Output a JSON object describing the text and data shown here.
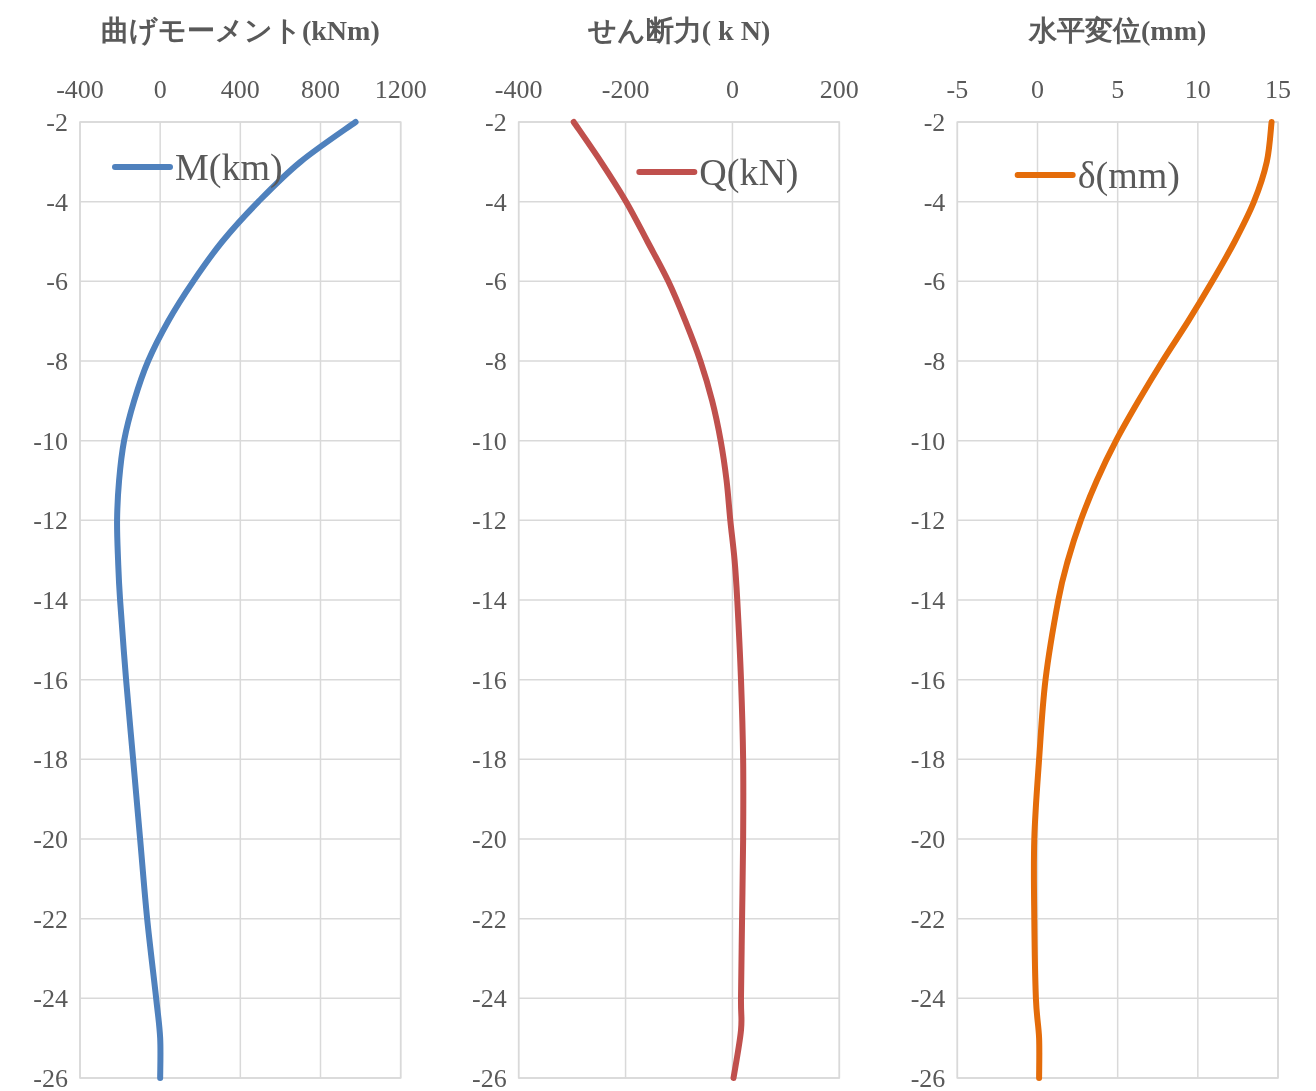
{
  "chart_data": [
    {
      "type": "line",
      "title": "曲げモーメント(kNm)",
      "xlim": [
        -400,
        1200
      ],
      "xticks": [
        -400,
        0,
        400,
        800,
        1200
      ],
      "ylim": [
        -26,
        -2
      ],
      "yticks": [
        -2,
        -4,
        -6,
        -8,
        -10,
        -12,
        -14,
        -16,
        -18,
        -20,
        -22,
        -24,
        -26
      ],
      "grid": true,
      "legend": "top left",
      "series": [
        {
          "name": "M(km)",
          "color": "#4f81bd",
          "x": [
            975,
            700,
            490,
            310,
            165,
            40,
            -60,
            -130,
            -180,
            -205,
            -215,
            -210,
            -200,
            -170,
            -135,
            -100,
            -65,
            -20,
            0,
            0
          ],
          "values": [
            -2,
            -3,
            -4,
            -5,
            -6,
            -7,
            -8,
            -9,
            -10,
            -11,
            -12,
            -13,
            -14,
            -16,
            -18,
            -20,
            -22,
            -24,
            -25,
            -26
          ]
        }
      ]
    },
    {
      "type": "line",
      "title": "せん断力( k N)",
      "xlim": [
        -400,
        200
      ],
      "xticks": [
        -400,
        -200,
        0,
        200
      ],
      "ylim": [
        -26,
        -2
      ],
      "yticks": [
        -2,
        -4,
        -6,
        -8,
        -10,
        -12,
        -14,
        -16,
        -18,
        -20,
        -22,
        -24,
        -26
      ],
      "grid": true,
      "legend": "top right",
      "series": [
        {
          "name": "Q(kN)",
          "color": "#c0504d",
          "x": [
            -297,
            -246,
            -199,
            -159,
            -120,
            -88,
            -60,
            -38,
            -22,
            -11,
            -4,
            4,
            9,
            16,
            20,
            20,
            18,
            16,
            16,
            2
          ],
          "values": [
            -2,
            -3,
            -4,
            -5,
            -6,
            -7,
            -8,
            -9,
            -10,
            -11,
            -12,
            -13,
            -14,
            -16,
            -18,
            -20,
            -22,
            -24,
            -24.8,
            -26
          ]
        }
      ]
    },
    {
      "type": "line",
      "title": "水平変位(mm)",
      "xlim": [
        -5,
        15
      ],
      "xticks": [
        -5,
        0,
        5,
        10,
        15
      ],
      "ylim": [
        -26,
        -2
      ],
      "yticks": [
        -2,
        -4,
        -6,
        -8,
        -10,
        -12,
        -14,
        -16,
        -18,
        -20,
        -22,
        -24,
        -26
      ],
      "grid": true,
      "legend": "top",
      "series": [
        {
          "name": "δ(mm)",
          "color": "#e46c0a",
          "x": [
            14.6,
            14.3,
            13.5,
            12.3,
            10.9,
            9.4,
            7.8,
            6.3,
            4.9,
            3.7,
            2.7,
            1.9,
            1.3,
            0.5,
            0.1,
            -0.2,
            -0.2,
            -0.1,
            0.1,
            0.1
          ],
          "values": [
            -2,
            -3,
            -4,
            -5,
            -6,
            -7,
            -8,
            -9,
            -10,
            -11,
            -12,
            -13,
            -14,
            -16,
            -18,
            -20,
            -22,
            -24,
            -25,
            -26
          ]
        }
      ]
    }
  ]
}
